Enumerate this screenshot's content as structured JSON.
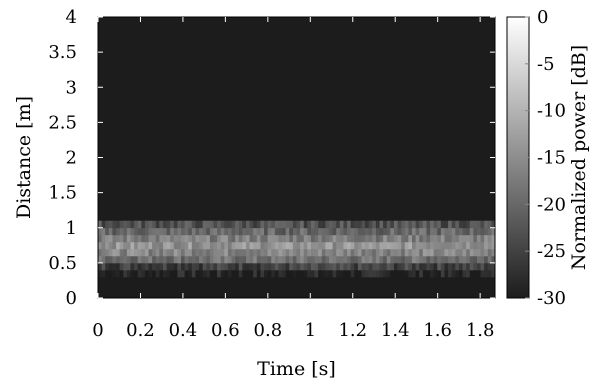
{
  "chart_data": {
    "type": "heatmap",
    "title": "",
    "xlabel": "Time [s]",
    "ylabel": "Distance [m]",
    "colorbar_label": "Normalized power [dB]",
    "xlim": [
      0,
      1.87
    ],
    "ylim": [
      0,
      4
    ],
    "x_ticks": [
      "0",
      "0.2",
      "0.4",
      "0.6",
      "0.8",
      "1",
      "1.2",
      "1.4",
      "1.6",
      "1.8"
    ],
    "y_ticks": [
      "0",
      "0.5",
      "1",
      "1.5",
      "2",
      "2.5",
      "3",
      "3.5",
      "4"
    ],
    "colorbar_range": [
      -30,
      0
    ],
    "colorbar_ticks": [
      "0",
      "-5",
      "-10",
      "-15",
      "-20",
      "-25",
      "-30"
    ],
    "colormap": "gray",
    "colors": {
      "min": "#1c1c1c",
      "max": "#ffffff"
    },
    "distance_bins_m": [
      0.0,
      0.1,
      0.2,
      0.3,
      0.4,
      0.5,
      0.6,
      0.7,
      0.8,
      0.9,
      1.0,
      1.1,
      1.2,
      1.3,
      1.4,
      1.5,
      1.6,
      1.7,
      1.8,
      1.9,
      2.0,
      2.1,
      2.2,
      2.3,
      2.4,
      2.5,
      2.6,
      2.7,
      2.8,
      2.9,
      3.0,
      3.1,
      3.2,
      3.3,
      3.4,
      3.5,
      3.6,
      3.7,
      3.8,
      3.9,
      4.0
    ],
    "mean_power_db_by_distance": [
      -30,
      -30,
      -30,
      -29,
      -25,
      -19,
      -16,
      -14,
      -17,
      -20,
      -23,
      -30,
      -30,
      -30,
      -30,
      -30,
      -30,
      -30,
      -30,
      -30,
      -30,
      -30,
      -30,
      -30,
      -30,
      -30,
      -30,
      -30,
      -30,
      -30,
      -30,
      -30,
      -30,
      -30,
      -30,
      -30,
      -30,
      -30,
      -30,
      -30
    ],
    "grid": false,
    "legend": "colorbar right"
  }
}
